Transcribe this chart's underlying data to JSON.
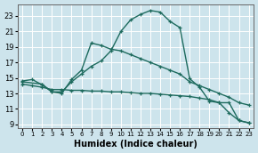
{
  "xlabel": "Humidex (Indice chaleur)",
  "xlim": [
    -0.5,
    23.5
  ],
  "ylim": [
    8.5,
    24.5
  ],
  "yticks": [
    9,
    11,
    13,
    15,
    17,
    19,
    21,
    23
  ],
  "xticks": [
    0,
    1,
    2,
    3,
    4,
    5,
    6,
    7,
    8,
    9,
    10,
    11,
    12,
    13,
    14,
    15,
    16,
    17,
    18,
    19,
    20,
    21,
    22,
    23
  ],
  "bg_color": "#cde4ec",
  "grid_color": "#ffffff",
  "line_color": "#1e6b5e",
  "curve1_x": [
    0,
    1,
    2,
    3,
    4,
    5,
    6,
    7,
    8,
    9,
    10,
    11,
    12,
    13,
    14,
    15,
    16,
    17,
    18,
    19,
    20,
    21,
    22,
    23
  ],
  "curve1_y": [
    14.6,
    14.8,
    14.1,
    13.2,
    13.2,
    14.5,
    15.5,
    16.5,
    17.2,
    18.5,
    21.0,
    22.5,
    23.2,
    23.7,
    23.5,
    22.3,
    21.5,
    14.9,
    13.8,
    12.0,
    11.8,
    11.8,
    9.5,
    9.2
  ],
  "curve2_x": [
    0,
    2,
    3,
    4,
    5,
    6,
    7,
    8,
    9,
    10,
    11,
    12,
    13,
    14,
    15,
    16,
    17,
    18,
    19,
    20,
    21,
    22,
    23
  ],
  "curve2_y": [
    14.5,
    14.2,
    13.2,
    13.0,
    14.8,
    16.0,
    19.5,
    19.2,
    18.7,
    18.5,
    18.0,
    17.5,
    17.0,
    16.5,
    16.0,
    15.5,
    14.5,
    14.0,
    13.5,
    13.0,
    12.5,
    11.8,
    11.5
  ],
  "curve3_x": [
    0,
    1,
    2,
    3,
    4,
    5,
    6,
    7,
    8,
    9,
    10,
    11,
    12,
    13,
    14,
    15,
    16,
    17,
    18,
    19,
    20,
    21,
    22,
    23
  ],
  "curve3_y": [
    14.2,
    14.0,
    13.8,
    13.5,
    13.5,
    13.4,
    13.4,
    13.3,
    13.3,
    13.2,
    13.2,
    13.1,
    13.0,
    13.0,
    12.9,
    12.8,
    12.7,
    12.6,
    12.4,
    12.2,
    11.8,
    10.5,
    9.5,
    9.2
  ],
  "marker_size": 3.5,
  "linewidth": 1.0,
  "tick_fontsize": 5.5,
  "xlabel_fontsize": 7
}
